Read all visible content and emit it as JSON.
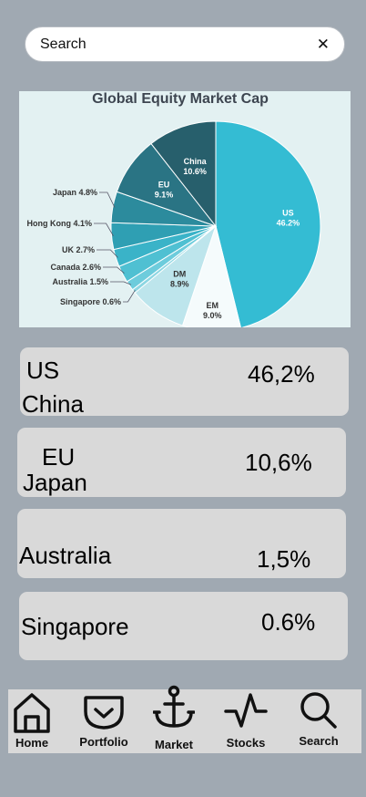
{
  "search": {
    "text": "Search",
    "close_icon": "close-icon"
  },
  "chart_data": {
    "type": "pie",
    "title": "Global Equity Market Cap",
    "slices": [
      {
        "label": "US",
        "value": 46.2,
        "display": "46.2%",
        "color": "#34bcd3"
      },
      {
        "label": "EM",
        "value": 9.0,
        "display": "9.0%",
        "color": "#f5fbfc"
      },
      {
        "label": "DM",
        "value": 8.9,
        "display": "8.9%",
        "color": "#bde5ec"
      },
      {
        "label": "Singapore",
        "value": 0.6,
        "display": "0.6%",
        "color": "#8dd6e2"
      },
      {
        "label": "Australia",
        "value": 1.5,
        "display": "1.5%",
        "color": "#6dccdc"
      },
      {
        "label": "Canada",
        "value": 2.6,
        "display": "2.6%",
        "color": "#4fc0d2"
      },
      {
        "label": "UK",
        "value": 2.7,
        "display": "2.7%",
        "color": "#3ab3c8"
      },
      {
        "label": "Hong Kong",
        "value": 4.1,
        "display": "4.1%",
        "color": "#2f9fb3"
      },
      {
        "label": "Japan",
        "value": 4.8,
        "display": "4.8%",
        "color": "#2c8b9d"
      },
      {
        "label": "EU",
        "value": 9.1,
        "display": "9.1%",
        "color": "#2a7484"
      },
      {
        "label": "China",
        "value": 10.6,
        "display": "10.6%",
        "color": "#275f6c"
      }
    ]
  },
  "cards": [
    {
      "line1": "US",
      "line2": "China",
      "value": "46,2%"
    },
    {
      "line1": "EU",
      "line2": "Japan",
      "value": "10,6%"
    },
    {
      "line1": "Australia",
      "value": "1,5%"
    },
    {
      "line1": "Singapore",
      "value": "0.6%"
    }
  ],
  "nav": [
    {
      "label": "Home",
      "icon": "home-icon"
    },
    {
      "label": "Portfolio",
      "icon": "pocket-icon"
    },
    {
      "label": "Market",
      "icon": "anchor-icon"
    },
    {
      "label": "Stocks",
      "icon": "activity-icon"
    },
    {
      "label": "Search",
      "icon": "search-icon"
    }
  ]
}
